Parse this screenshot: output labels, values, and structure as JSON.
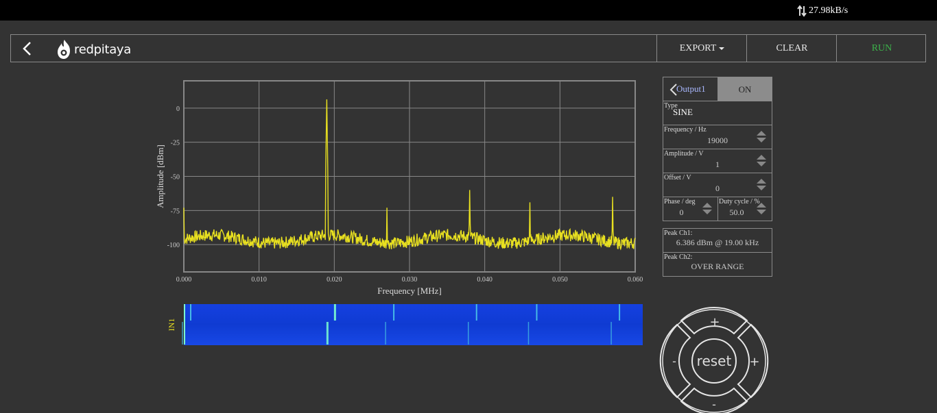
{
  "network": {
    "rate": "27.98kB/s"
  },
  "header": {
    "logo_text": "redpitaya",
    "export_label": "EXPORT",
    "clear_label": "CLEAR",
    "run_label": "RUN",
    "run_color": "#3cb34a"
  },
  "output": {
    "name": "Output1",
    "state_label": "ON",
    "type_label": "Type",
    "type_value": "SINE",
    "frequency_label": "Frequency   / Hz",
    "frequency_value": "19000",
    "amplitude_label": "Amplitude  / V",
    "amplitude_value": "1",
    "offset_label": "Offset  / V",
    "offset_value": "0",
    "phase_label": "Phase   / deg",
    "phase_value": "0",
    "duty_label": "Duty cycle  / %",
    "duty_value": "50.0"
  },
  "peaks": {
    "ch1_label": "Peak  Ch1:",
    "ch1_value": "6.386  dBm  @  19.00  kHz",
    "ch2_label": "Peak  Ch2:",
    "ch2_value": "OVER RANGE"
  },
  "pad": {
    "center_label": "reset",
    "plus": "+",
    "minus": "-"
  },
  "waterfall": {
    "label": "IN1",
    "color": "#e8e020"
  },
  "chart_data": {
    "type": "line",
    "xlabel": "Frequency   [MHz]",
    "ylabel": "Amplitude  [dBm]",
    "xlim": [
      0.0,
      0.06
    ],
    "ylim": [
      -120,
      20
    ],
    "x_ticks": [
      0.0,
      0.01,
      0.02,
      0.03,
      0.04,
      0.05,
      0.06
    ],
    "x_tick_labels": [
      "0.000",
      "0.010",
      "0.020",
      "0.030",
      "0.040",
      "0.050",
      "0.060"
    ],
    "y_ticks": [
      0,
      -25,
      -50,
      -75,
      -100
    ],
    "y_tick_labels": [
      "0",
      "-25",
      "-50",
      "-75",
      "-100"
    ],
    "grid": true,
    "series": [
      {
        "color": "#e8e020",
        "noise_floor_dbm": -96,
        "peaks": [
          {
            "x": 0.0,
            "y": -73
          },
          {
            "x": 0.019,
            "y": 6.386
          },
          {
            "x": 0.027,
            "y": -73
          },
          {
            "x": 0.038,
            "y": -60
          },
          {
            "x": 0.046,
            "y": -69
          },
          {
            "x": 0.057,
            "y": -65
          }
        ]
      }
    ]
  }
}
